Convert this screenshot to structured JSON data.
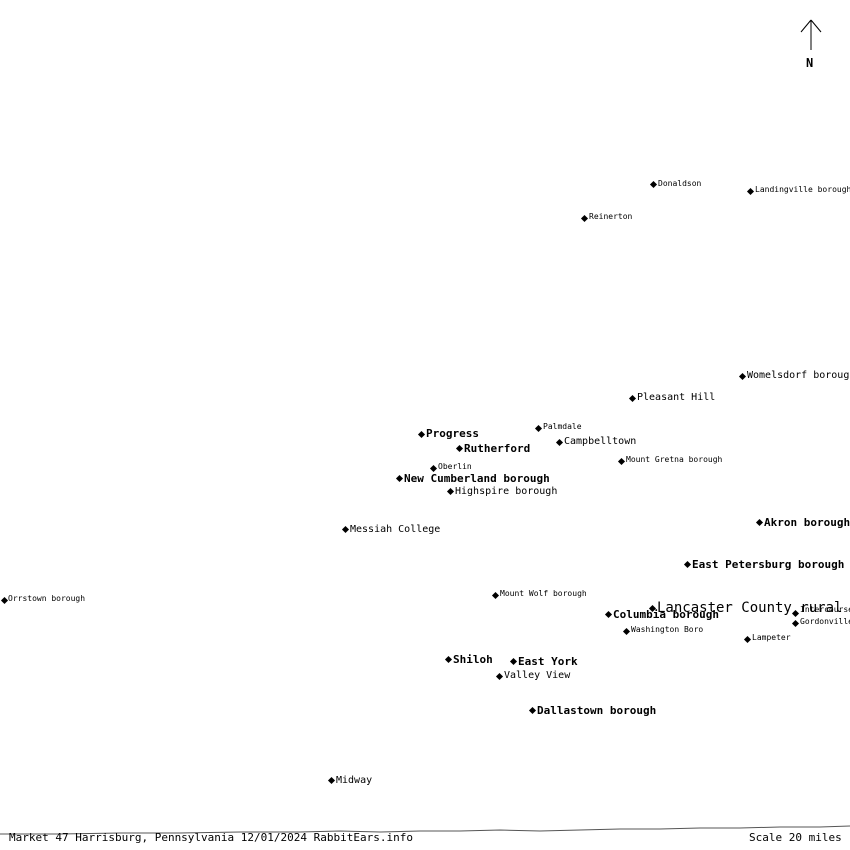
{
  "north_label": "N",
  "footer": {
    "caption": "Market 47 Harrisburg, Pennsylvania 12/01/2024 RabbitEars.info",
    "scale": "Scale 20 miles"
  },
  "places": [
    {
      "name": "Donaldson"
    },
    {
      "name": "Landingville borough"
    },
    {
      "name": "Reinerton"
    },
    {
      "name": "Womelsdorf borough"
    },
    {
      "name": "Pleasant Hill"
    },
    {
      "name": "Progress"
    },
    {
      "name": "Palmdale"
    },
    {
      "name": "Rutherford"
    },
    {
      "name": "Campbelltown"
    },
    {
      "name": "Mount Gretna borough"
    },
    {
      "name": "Oberlin"
    },
    {
      "name": "New Cumberland borough"
    },
    {
      "name": "Highspire borough"
    },
    {
      "name": "Akron borough"
    },
    {
      "name": "Messiah College"
    },
    {
      "name": "East Petersburg borough"
    },
    {
      "name": "Orrstown borough"
    },
    {
      "name": "Mount Wolf borough"
    },
    {
      "name": "Lancaster County rural"
    },
    {
      "name": "Columbia borough"
    },
    {
      "name": "Intercourse"
    },
    {
      "name": "Gordonville"
    },
    {
      "name": "Washington Boro"
    },
    {
      "name": "Lampeter"
    },
    {
      "name": "Shiloh"
    },
    {
      "name": "East York"
    },
    {
      "name": "Valley View"
    },
    {
      "name": "Dallastown borough"
    },
    {
      "name": "Midway"
    }
  ]
}
